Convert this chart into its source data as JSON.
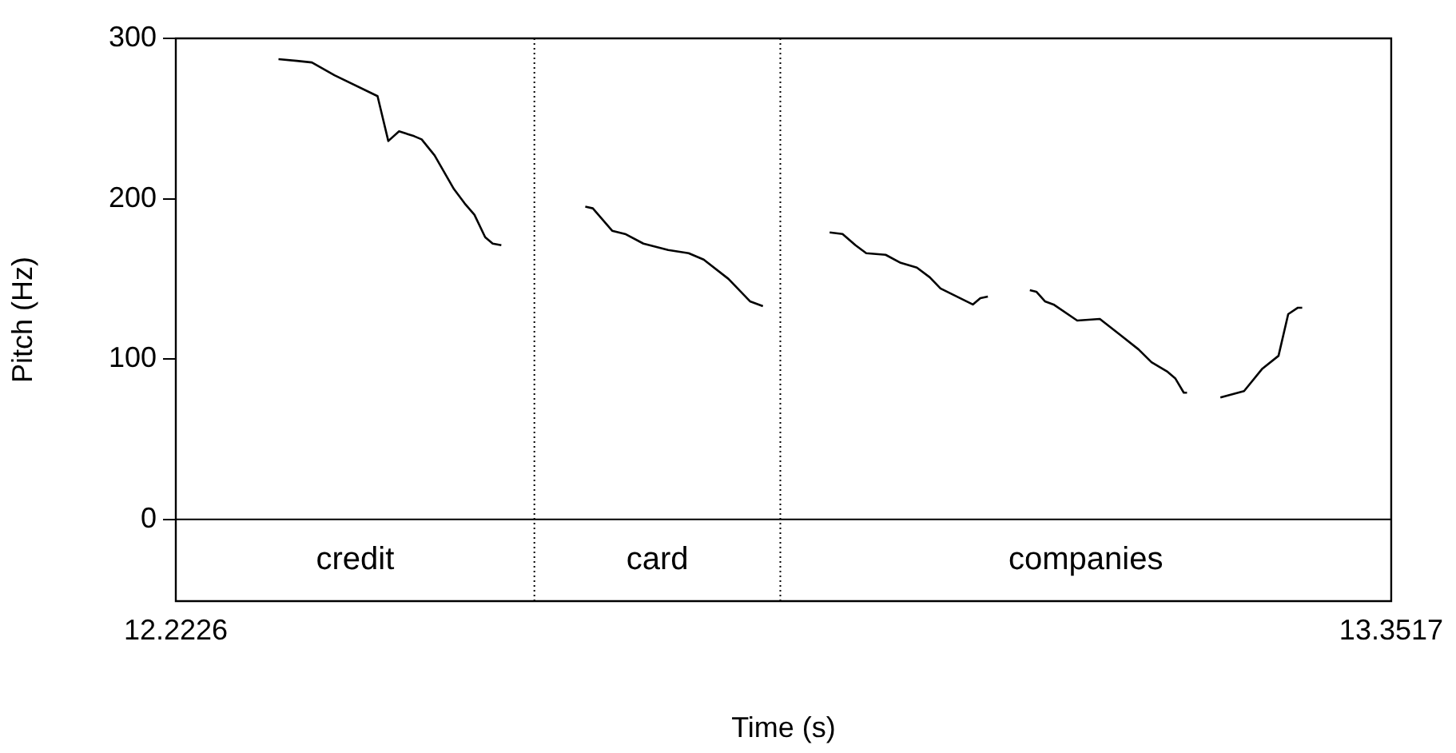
{
  "chart_data": {
    "type": "line",
    "xlabel": "Time (s)",
    "ylabel": "Pitch (Hz)",
    "xlim": [
      12.2226,
      13.3517
    ],
    "xticks": [
      12.2226,
      13.3517
    ],
    "ylim": [
      -51,
      300
    ],
    "yticks": [
      0,
      100,
      200,
      300
    ],
    "grid": false,
    "legend": false,
    "marker": "none",
    "line_style": "solid",
    "series": [
      {
        "color": "#000000",
        "x": [
          12.318,
          12.335,
          12.349,
          12.37,
          12.41,
          12.42,
          12.43,
          12.444,
          12.451,
          12.463,
          12.481,
          12.491,
          12.5,
          12.51,
          12.517,
          12.525
        ],
        "values": [
          287,
          286,
          285,
          277,
          264,
          236,
          242,
          239,
          237,
          227,
          206,
          197,
          190,
          176,
          172,
          171
        ]
      },
      {
        "color": "#000000",
        "x": [
          12.603,
          12.61,
          12.628,
          12.64,
          12.657,
          12.68,
          12.699,
          12.713,
          12.736,
          12.756,
          12.768
        ],
        "values": [
          195,
          194,
          180,
          178,
          172,
          168,
          166,
          162,
          150,
          136,
          133
        ]
      },
      {
        "color": "#000000",
        "x": [
          12.83,
          12.842,
          12.854,
          12.864,
          12.882,
          12.896,
          12.911,
          12.923,
          12.933,
          12.945,
          12.957,
          12.963,
          12.97,
          12.977
        ],
        "values": [
          179,
          178,
          171,
          166,
          165,
          160,
          157,
          151,
          144,
          140,
          136,
          134,
          138,
          139
        ]
      },
      {
        "color": "#000000",
        "x": [
          13.016,
          13.022,
          13.03,
          13.038,
          13.06,
          13.081,
          13.1,
          13.117,
          13.129,
          13.144,
          13.151,
          13.159,
          13.162
        ],
        "values": [
          143,
          142,
          136,
          134,
          124,
          125,
          115,
          106,
          98,
          92,
          88,
          79,
          79
        ]
      },
      {
        "color": "#000000",
        "x": [
          13.193,
          13.215,
          13.232,
          13.247,
          13.256,
          13.265,
          13.269
        ],
        "values": [
          76,
          80,
          94,
          102,
          128,
          132,
          132
        ]
      }
    ],
    "ref_lines": [
      {
        "axis": "y",
        "value": 0,
        "color": "#000000",
        "line_style": "solid"
      },
      {
        "axis": "x",
        "value": 12.5557,
        "color": "#000000",
        "line_style": "dotted"
      },
      {
        "axis": "x",
        "value": 12.7842,
        "color": "#000000",
        "line_style": "dotted"
      }
    ],
    "annotations": [
      "credit",
      "card",
      "companies"
    ]
  }
}
